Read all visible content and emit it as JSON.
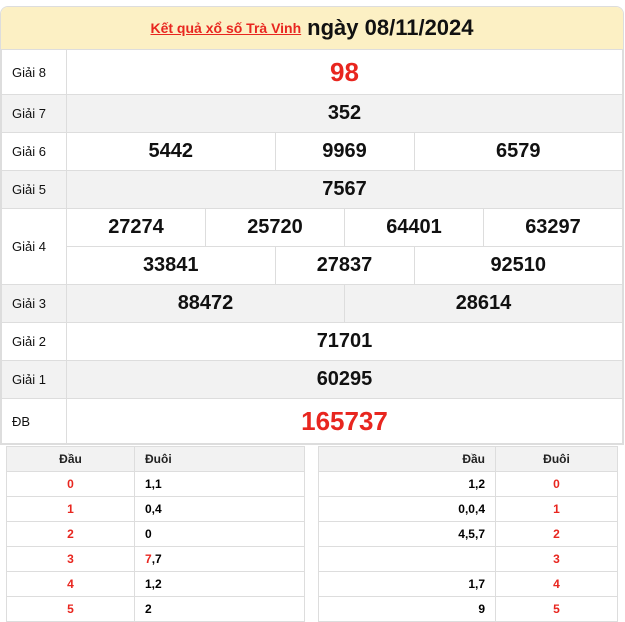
{
  "header": {
    "link": "Kết quả xổ số Trà Vinh",
    "date": "ngày 08/11/2024"
  },
  "prizes": [
    {
      "label": "Giải 8",
      "numbers": [
        "98"
      ]
    },
    {
      "label": "Giải 7",
      "numbers": [
        "352"
      ]
    },
    {
      "label": "Giải 6",
      "numbers": [
        "5442",
        "9969",
        "6579"
      ]
    },
    {
      "label": "Giải 5",
      "numbers": [
        "7567"
      ]
    },
    {
      "label": "Giải 4",
      "numbers": [
        "27274",
        "25720",
        "64401",
        "63297",
        "33841",
        "27837",
        "92510"
      ]
    },
    {
      "label": "Giải 3",
      "numbers": [
        "88472",
        "28614"
      ]
    },
    {
      "label": "Giải 2",
      "numbers": [
        "71701"
      ]
    },
    {
      "label": "Giải 1",
      "numbers": [
        "60295"
      ]
    },
    {
      "label": "ĐB",
      "numbers": [
        "165737"
      ]
    }
  ],
  "colors": {
    "accent": "#e8261f",
    "header_bg": "#fcf0c4"
  },
  "dau_table": {
    "headers": [
      "Đầu",
      "Đuôi"
    ],
    "rows": [
      {
        "dau": "0",
        "duoi": "1,1"
      },
      {
        "dau": "1",
        "duoi": "0,4"
      },
      {
        "dau": "2",
        "duoi": "0"
      },
      {
        "dau": "3",
        "duoi_red": "7",
        "duoi": ",7"
      },
      {
        "dau": "4",
        "duoi": "1,2"
      },
      {
        "dau": "5",
        "duoi": "2"
      }
    ]
  },
  "duoi_table": {
    "headers": [
      "Đầu",
      "Đuôi"
    ],
    "rows": [
      {
        "dau": "1,2",
        "duoi": "0"
      },
      {
        "dau": "0,0,4",
        "duoi": "1"
      },
      {
        "dau": "4,5,7",
        "duoi": "2"
      },
      {
        "dau": "",
        "duoi": "3"
      },
      {
        "dau": "1,7",
        "duoi": "4"
      },
      {
        "dau": "9",
        "duoi": "5"
      }
    ]
  }
}
